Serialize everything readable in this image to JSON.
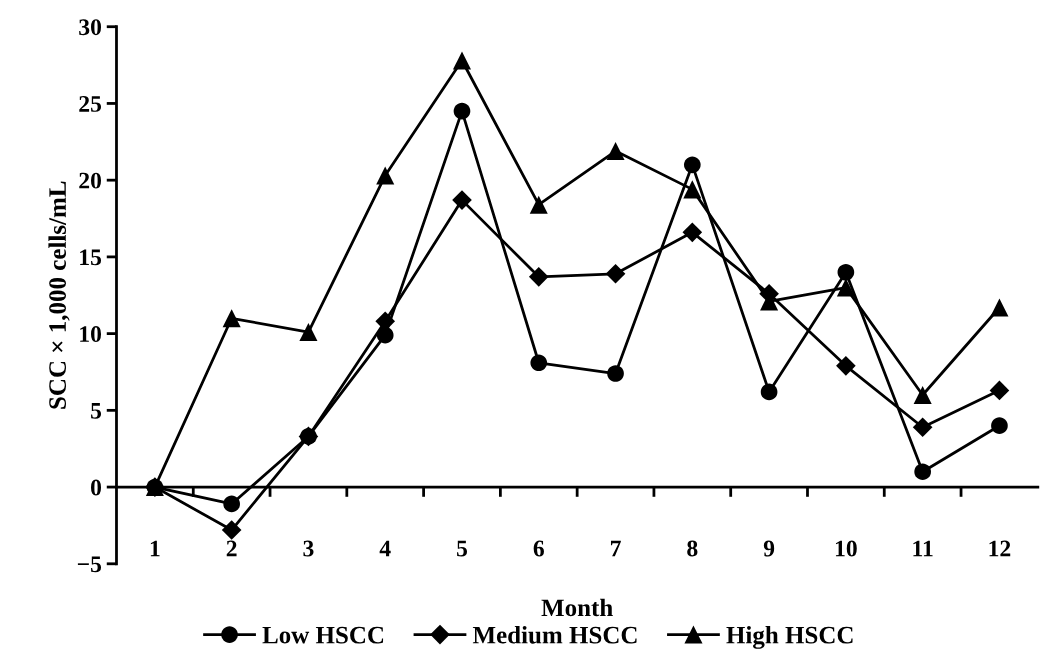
{
  "chart_data": {
    "type": "line",
    "xlabel": "Month",
    "ylabel": "SCC × 1,000 cells/mL",
    "categories": [
      "1",
      "2",
      "3",
      "4",
      "5",
      "6",
      "7",
      "8",
      "9",
      "10",
      "11",
      "12"
    ],
    "series": [
      {
        "name": "Low HSCC",
        "color": "#000000",
        "marker": "circle",
        "values": [
          0,
          -1.1,
          3.3,
          9.9,
          24.5,
          8.1,
          7.4,
          21.0,
          6.2,
          14.0,
          1.0,
          4.0
        ]
      },
      {
        "name": "Medium HSCC",
        "color": "#000000",
        "marker": "diamond",
        "values": [
          0,
          -2.8,
          3.3,
          10.8,
          18.7,
          13.7,
          13.9,
          16.6,
          12.6,
          7.9,
          3.9,
          6.3
        ]
      },
      {
        "name": "High HSCC",
        "color": "#000000",
        "marker": "triangle",
        "values": [
          0,
          11.0,
          10.1,
          20.3,
          27.8,
          18.4,
          21.9,
          19.4,
          12.1,
          13.0,
          6.0,
          11.7
        ]
      }
    ],
    "ylim": [
      -5,
      30
    ],
    "yticks": [
      {
        "value": -5,
        "label": "−5"
      },
      0,
      5,
      10,
      15,
      20,
      25,
      30
    ],
    "grid": false,
    "legend": "bottom",
    "line_style": "solid"
  }
}
